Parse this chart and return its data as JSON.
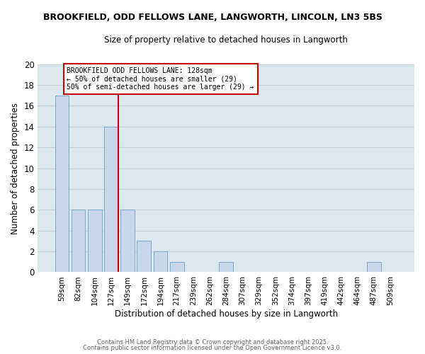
{
  "title1": "BROOKFIELD, ODD FELLOWS LANE, LANGWORTH, LINCOLN, LN3 5BS",
  "title2": "Size of property relative to detached houses in Langworth",
  "xlabel": "Distribution of detached houses by size in Langworth",
  "ylabel": "Number of detached properties",
  "bar_labels": [
    "59sqm",
    "82sqm",
    "104sqm",
    "127sqm",
    "149sqm",
    "172sqm",
    "194sqm",
    "217sqm",
    "239sqm",
    "262sqm",
    "284sqm",
    "307sqm",
    "329sqm",
    "352sqm",
    "374sqm",
    "397sqm",
    "419sqm",
    "442sqm",
    "464sqm",
    "487sqm",
    "509sqm"
  ],
  "bar_values": [
    17,
    6,
    6,
    14,
    6,
    3,
    2,
    1,
    0,
    0,
    1,
    0,
    0,
    0,
    0,
    0,
    0,
    0,
    0,
    1,
    0
  ],
  "bar_color": "#c8d8ea",
  "bar_edge_color": "#7aaac8",
  "grid_color": "#c8d0d8",
  "plot_bg_color": "#dce8f0",
  "fig_bg_color": "#ffffff",
  "vline_color": "#cc0000",
  "vline_x_idx": 3,
  "annotation_text": "BROOKFIELD ODD FELLOWS LANE: 128sqm\n← 50% of detached houses are smaller (29)\n50% of semi-detached houses are larger (29) →",
  "annotation_box_color": "#ffffff",
  "annotation_box_edge": "#cc0000",
  "ylim": [
    0,
    20
  ],
  "yticks": [
    0,
    2,
    4,
    6,
    8,
    10,
    12,
    14,
    16,
    18,
    20
  ],
  "footer1": "Contains HM Land Registry data © Crown copyright and database right 2025.",
  "footer2": "Contains public sector information licensed under the Open Government Licence v3.0."
}
